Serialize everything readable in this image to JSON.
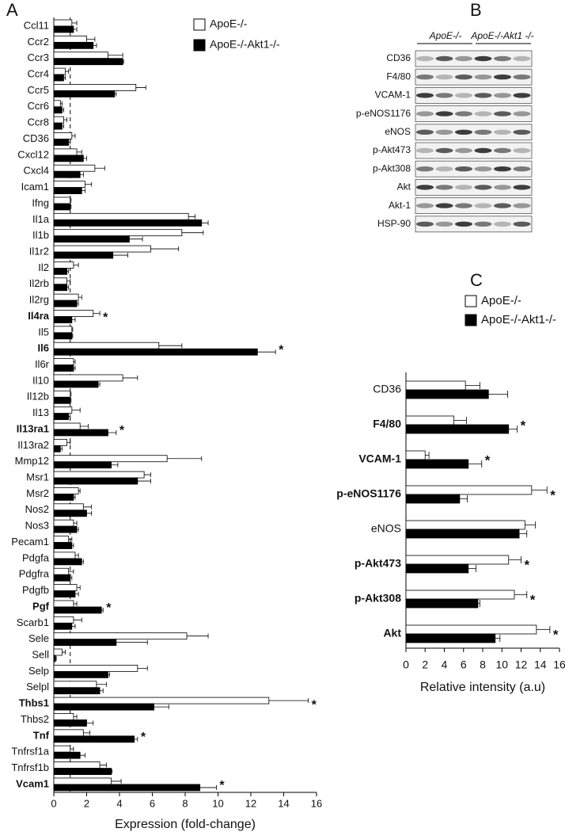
{
  "chart_data": [
    {
      "type": "bar",
      "orientation": "horizontal",
      "panel": "A",
      "xlabel": "Expression (fold-change)",
      "categories": [
        "Ccl11",
        "Ccr2",
        "Ccr3",
        "Ccr4",
        "Ccr5",
        "Ccr6",
        "Ccr8",
        "CD36",
        "Cxcl12",
        "Cxcl4",
        "Icam1",
        "Ifng",
        "Il1a",
        "Il1b",
        "Il1r2",
        "Il2",
        "Il2rb",
        "Il2rg",
        "Il4ra",
        "Il5",
        "Il6",
        "Il6r",
        "Il10",
        "Il12b",
        "Il13",
        "Il13ra1",
        "Il13ra2",
        "Mmp12",
        "Msr1",
        "Msr2",
        "Nos2",
        "Nos3",
        "Pecam1",
        "Pdgfa",
        "Pdgfra",
        "Pdgfb",
        "Pgf",
        "Scarb1",
        "Sele",
        "Sell",
        "Selp",
        "Selpl",
        "Thbs1",
        "Thbs2",
        "Tnf",
        "Tnfrsf1a",
        "Tnfrsf1b",
        "Vcam1"
      ],
      "series": [
        {
          "name": "ApoE-/-",
          "color": "#ffffff",
          "values": [
            1.1,
            2.0,
            3.3,
            0.7,
            5.0,
            0.4,
            0.6,
            1.1,
            1.4,
            2.5,
            1.9,
            1.0,
            8.2,
            7.8,
            5.9,
            1.2,
            0.8,
            1.5,
            2.4,
            1.1,
            6.4,
            1.2,
            4.2,
            1.0,
            1.1,
            1.6,
            0.8,
            6.9,
            5.5,
            1.5,
            1.8,
            1.2,
            0.9,
            1.3,
            0.9,
            1.4,
            1.2,
            1.2,
            8.1,
            0.5,
            5.1,
            2.6,
            13.1,
            1.2,
            1.8,
            1.0,
            2.8,
            3.5
          ],
          "errors": [
            0.3,
            0.5,
            0.9,
            0.2,
            0.6,
            0.1,
            0.2,
            0.2,
            0.3,
            0.6,
            0.4,
            0.05,
            0.4,
            1.3,
            1.7,
            0.3,
            0.2,
            0.2,
            0.4,
            0.05,
            1.4,
            0.1,
            0.9,
            0.05,
            0.5,
            0.5,
            0.2,
            2.1,
            0.4,
            0.1,
            0.5,
            0.2,
            0.2,
            0.2,
            0.3,
            0.2,
            0.2,
            0.5,
            1.3,
            0.2,
            0.6,
            0.6,
            2.4,
            0.2,
            0.4,
            0.2,
            0.4,
            0.6
          ]
        },
        {
          "name": "ApoE-/-Akt1-/-",
          "color": "#000000",
          "values": [
            1.2,
            2.4,
            4.2,
            0.6,
            3.7,
            0.5,
            0.5,
            0.9,
            1.8,
            1.6,
            1.7,
            1.0,
            9.0,
            4.6,
            3.6,
            0.8,
            0.8,
            1.4,
            1.1,
            1.1,
            12.4,
            1.2,
            2.7,
            1.0,
            0.9,
            3.3,
            0.4,
            3.5,
            5.1,
            1.2,
            2.0,
            1.4,
            1.1,
            1.7,
            1.0,
            1.3,
            2.9,
            1.1,
            3.8,
            0.1,
            3.3,
            2.8,
            6.1,
            2.0,
            4.9,
            1.6,
            3.5,
            8.9
          ],
          "errors": [
            0.2,
            0.2,
            0.05,
            0.1,
            0.1,
            0.1,
            0.1,
            0.1,
            0.2,
            0.2,
            0.2,
            0.05,
            0.4,
            0.8,
            0.9,
            0.1,
            0.1,
            0.1,
            0.2,
            0.05,
            1.1,
            0.1,
            0.1,
            0.05,
            0.1,
            0.5,
            0.1,
            0.4,
            0.8,
            0.1,
            0.3,
            0.1,
            0.1,
            0.1,
            0.1,
            0.2,
            0.1,
            0.2,
            1.9,
            0.05,
            0.1,
            0.2,
            0.9,
            0.4,
            0.2,
            0.3,
            0.05,
            1.0
          ]
        }
      ],
      "annotations": [
        null,
        null,
        null,
        null,
        null,
        null,
        null,
        null,
        null,
        null,
        null,
        null,
        null,
        null,
        null,
        null,
        null,
        null,
        "*",
        null,
        "*",
        null,
        null,
        null,
        null,
        "*",
        null,
        null,
        null,
        null,
        null,
        null,
        null,
        null,
        null,
        null,
        "*",
        null,
        null,
        null,
        null,
        null,
        "*",
        null,
        "*",
        null,
        null,
        "*"
      ],
      "reference_line": 1,
      "xlim": [
        0,
        16
      ],
      "xticks": [
        0,
        2,
        4,
        6,
        8,
        10,
        12,
        14,
        16
      ]
    },
    {
      "type": "bar",
      "orientation": "horizontal",
      "panel": "C",
      "xlabel": "Relative intensity (a.u)",
      "categories": [
        "CD36",
        "F4/80",
        "VCAM-1",
        "p-eNOS1176",
        "eNOS",
        "p-Akt473",
        "p-Akt308",
        "Akt"
      ],
      "series": [
        {
          "name": "ApoE-/-",
          "color": "#ffffff",
          "values": [
            6.2,
            5.0,
            2.0,
            13.1,
            12.4,
            10.7,
            11.3,
            13.6
          ],
          "errors": [
            1.5,
            1.3,
            0.4,
            1.6,
            1.1,
            1.3,
            1.3,
            1.4
          ]
        },
        {
          "name": "ApoE-/-Akt1-/-",
          "color": "#000000",
          "values": [
            8.6,
            10.7,
            6.5,
            5.6,
            11.8,
            6.5,
            7.5,
            9.3
          ],
          "errors": [
            2.0,
            0.9,
            1.4,
            0.8,
            0.8,
            0.8,
            0.2,
            0.5
          ]
        }
      ],
      "annotations": [
        null,
        "*",
        "*",
        "*",
        null,
        "*",
        "*",
        "*"
      ],
      "xlim": [
        0,
        16
      ],
      "xticks": [
        0,
        2,
        4,
        6,
        8,
        10,
        12,
        14,
        16
      ]
    }
  ],
  "blot": {
    "panel": "B",
    "groups": [
      "ApoE-/-",
      "ApoE-/-Akt1 -/-"
    ],
    "rows": [
      "CD36",
      "F4/80",
      "VCAM-1",
      "p-eNOS1176",
      "eNOS",
      "p-Akt473",
      "p-Akt308",
      "Akt",
      "Akt-1",
      "HSP-90"
    ]
  }
}
